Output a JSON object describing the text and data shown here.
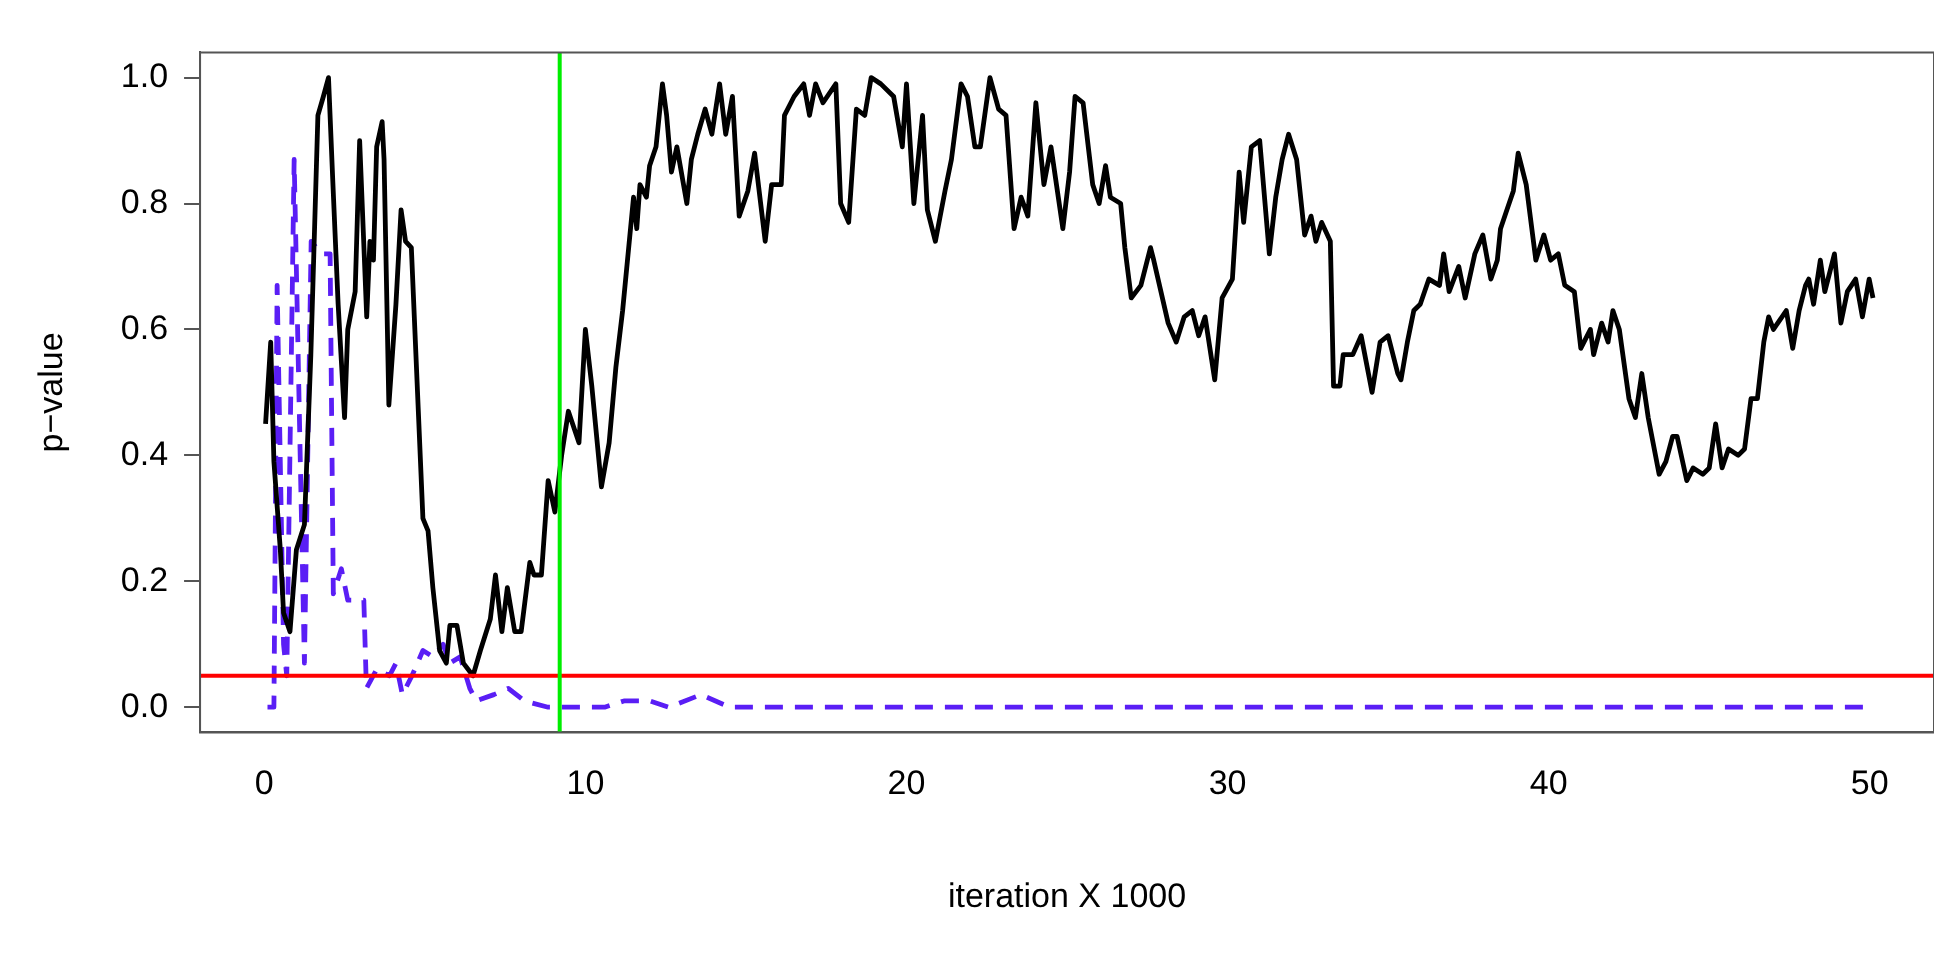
{
  "chart_data": {
    "type": "line",
    "xlabel": "iteration X 1000",
    "ylabel": "p−value",
    "xlim": [
      -2,
      52
    ],
    "ylim": [
      -0.04,
      1.04
    ],
    "xticks": [
      0,
      10,
      20,
      30,
      40,
      50
    ],
    "yticks": [
      {
        "value": 0,
        "label": "0.0"
      },
      0.2,
      0.4,
      0.6,
      0.8,
      {
        "value": 1,
        "label": "1.0"
      }
    ],
    "grid": false,
    "legend": false,
    "marker": "none",
    "ref_lines": [
      {
        "axis": "y",
        "value": 0.05,
        "color": "#ff0000"
      },
      {
        "axis": "x",
        "value": 9.2,
        "color": "#00ee00"
      }
    ],
    "series": [
      {
        "color": "#000000",
        "line_style": "solid",
        "x": [
          0.04,
          0.2,
          0.3,
          0.5,
          0.6,
          0.8,
          1.0,
          1.25,
          1.45,
          1.67,
          1.84,
          2.0,
          2.13,
          2.3,
          2.5,
          2.6,
          2.83,
          2.97,
          3.19,
          3.29,
          3.4,
          3.5,
          3.67,
          3.73,
          3.88,
          4.1,
          4.26,
          4.4,
          4.58,
          4.94,
          5.1,
          5.25,
          5.46,
          5.67,
          5.78,
          6.0,
          6.2,
          6.5,
          6.73,
          7.04,
          7.2,
          7.4,
          7.57,
          7.8,
          8.0,
          8.27,
          8.4,
          8.63,
          8.84,
          9.05,
          9.26,
          9.47,
          9.8,
          10.0,
          10.2,
          10.5,
          10.74,
          10.95,
          11.16,
          11.5,
          11.6,
          11.7,
          11.9,
          12.0,
          12.2,
          12.4,
          12.53,
          12.68,
          12.85,
          13.16,
          13.3,
          13.5,
          13.73,
          13.94,
          14.18,
          14.37,
          14.58,
          14.79,
          15.06,
          15.27,
          15.6,
          15.8,
          16.1,
          16.2,
          16.5,
          16.8,
          16.98,
          17.17,
          17.4,
          17.8,
          17.95,
          18.2,
          18.44,
          18.7,
          18.9,
          19.2,
          19.6,
          19.87,
          20.0,
          20.23,
          20.5,
          20.65,
          20.9,
          21.2,
          21.4,
          21.7,
          21.9,
          22.13,
          22.3,
          22.6,
          22.87,
          23.1,
          23.35,
          23.57,
          23.78,
          24.03,
          24.28,
          24.5,
          24.87,
          25.08,
          25.25,
          25.5,
          25.8,
          26.0,
          26.2,
          26.35,
          26.67,
          26.8,
          27.0,
          27.3,
          27.6,
          27.7,
          28.15,
          28.4,
          28.65,
          28.9,
          29.1,
          29.3,
          29.6,
          29.83,
          30.15,
          30.36,
          30.5,
          30.74,
          31.0,
          31.3,
          31.5,
          31.7,
          31.9,
          32.15,
          32.4,
          32.6,
          32.75,
          32.93,
          33.2,
          33.3,
          33.5,
          33.6,
          33.9,
          34.16,
          34.5,
          34.75,
          35.0,
          35.3,
          35.4,
          35.6,
          35.8,
          36.0,
          36.27,
          36.6,
          36.73,
          36.9,
          37.2,
          37.4,
          37.7,
          37.95,
          38.2,
          38.4,
          38.5,
          38.7,
          38.9,
          39.05,
          39.3,
          39.6,
          39.85,
          40.06,
          40.3,
          40.5,
          40.8,
          41.0,
          41.3,
          41.4,
          41.65,
          41.85,
          42.0,
          42.2,
          42.5,
          42.7,
          42.9,
          43.1,
          43.44,
          43.65,
          43.86,
          44.0,
          44.3,
          44.5,
          44.8,
          45.0,
          45.2,
          45.4,
          45.6,
          45.9,
          46.1,
          46.3,
          46.5,
          46.7,
          46.85,
          47.0,
          47.4,
          47.6,
          47.8,
          48.0,
          48.1,
          48.25,
          48.46,
          48.6,
          48.9,
          49.1,
          49.3,
          49.56,
          49.77,
          49.98,
          50.1
        ],
        "values": [
          0.45,
          0.58,
          0.39,
          0.25,
          0.15,
          0.12,
          0.25,
          0.29,
          0.56,
          0.94,
          0.97,
          1.0,
          0.84,
          0.64,
          0.46,
          0.6,
          0.66,
          0.9,
          0.62,
          0.74,
          0.71,
          0.89,
          0.93,
          0.87,
          0.48,
          0.64,
          0.79,
          0.74,
          0.73,
          0.3,
          0.28,
          0.19,
          0.09,
          0.07,
          0.13,
          0.13,
          0.07,
          0.05,
          0.09,
          0.14,
          0.21,
          0.12,
          0.19,
          0.12,
          0.12,
          0.23,
          0.21,
          0.21,
          0.36,
          0.31,
          0.4,
          0.47,
          0.42,
          0.6,
          0.51,
          0.35,
          0.42,
          0.54,
          0.63,
          0.81,
          0.76,
          0.83,
          0.81,
          0.86,
          0.89,
          0.99,
          0.94,
          0.85,
          0.89,
          0.8,
          0.87,
          0.91,
          0.95,
          0.91,
          0.99,
          0.91,
          0.97,
          0.78,
          0.82,
          0.88,
          0.74,
          0.83,
          0.83,
          0.94,
          0.97,
          0.99,
          0.94,
          0.99,
          0.96,
          0.99,
          0.8,
          0.77,
          0.95,
          0.94,
          1.0,
          0.99,
          0.97,
          0.89,
          0.99,
          0.8,
          0.94,
          0.79,
          0.74,
          0.82,
          0.87,
          0.99,
          0.97,
          0.89,
          0.89,
          1.0,
          0.95,
          0.94,
          0.76,
          0.81,
          0.78,
          0.96,
          0.83,
          0.89,
          0.76,
          0.85,
          0.97,
          0.96,
          0.83,
          0.8,
          0.86,
          0.81,
          0.8,
          0.73,
          0.65,
          0.67,
          0.73,
          0.71,
          0.61,
          0.58,
          0.62,
          0.63,
          0.59,
          0.62,
          0.52,
          0.65,
          0.68,
          0.85,
          0.77,
          0.89,
          0.9,
          0.72,
          0.81,
          0.87,
          0.91,
          0.87,
          0.75,
          0.78,
          0.74,
          0.77,
          0.74,
          0.51,
          0.51,
          0.56,
          0.56,
          0.59,
          0.5,
          0.58,
          0.59,
          0.53,
          0.52,
          0.58,
          0.63,
          0.64,
          0.68,
          0.67,
          0.72,
          0.66,
          0.7,
          0.65,
          0.72,
          0.75,
          0.68,
          0.71,
          0.76,
          0.79,
          0.82,
          0.88,
          0.83,
          0.71,
          0.75,
          0.71,
          0.72,
          0.67,
          0.66,
          0.57,
          0.6,
          0.56,
          0.61,
          0.58,
          0.63,
          0.6,
          0.49,
          0.46,
          0.53,
          0.46,
          0.37,
          0.39,
          0.43,
          0.43,
          0.36,
          0.38,
          0.37,
          0.38,
          0.45,
          0.38,
          0.41,
          0.4,
          0.41,
          0.49,
          0.49,
          0.58,
          0.62,
          0.6,
          0.63,
          0.57,
          0.63,
          0.67,
          0.68,
          0.64,
          0.71,
          0.66,
          0.72,
          0.61,
          0.66,
          0.68,
          0.62,
          0.68,
          0.65
        ]
      },
      {
        "color": "#5a1ef5",
        "line_style": "dashed",
        "x": [
          0.1,
          0.3,
          0.4,
          0.6,
          0.7,
          0.93,
          1.25,
          1.46,
          1.77,
          2.05,
          2.15,
          2.4,
          2.6,
          3.1,
          3.18,
          3.5,
          3.9,
          4.1,
          4.3,
          4.6,
          4.94,
          5.25,
          5.57,
          5.78,
          6.1,
          6.4,
          6.6,
          7.15,
          7.6,
          8.1,
          8.84,
          9.7,
          10.6,
          11.2,
          12.0,
          12.6,
          13.6,
          14.5,
          16.0,
          20.0,
          30.0,
          40.0,
          49.8
        ],
        "values": [
          0.0,
          0.0,
          0.67,
          0.1,
          0.05,
          0.87,
          0.07,
          0.74,
          0.72,
          0.72,
          0.18,
          0.22,
          0.17,
          0.17,
          0.03,
          0.06,
          0.05,
          0.07,
          0.02,
          0.05,
          0.09,
          0.08,
          0.1,
          0.07,
          0.08,
          0.03,
          0.01,
          0.02,
          0.03,
          0.01,
          0.0,
          0.0,
          0.0,
          0.01,
          0.01,
          0.0,
          0.02,
          0.0,
          0.0,
          0.0,
          0.0,
          0.0,
          0.0
        ]
      }
    ]
  }
}
